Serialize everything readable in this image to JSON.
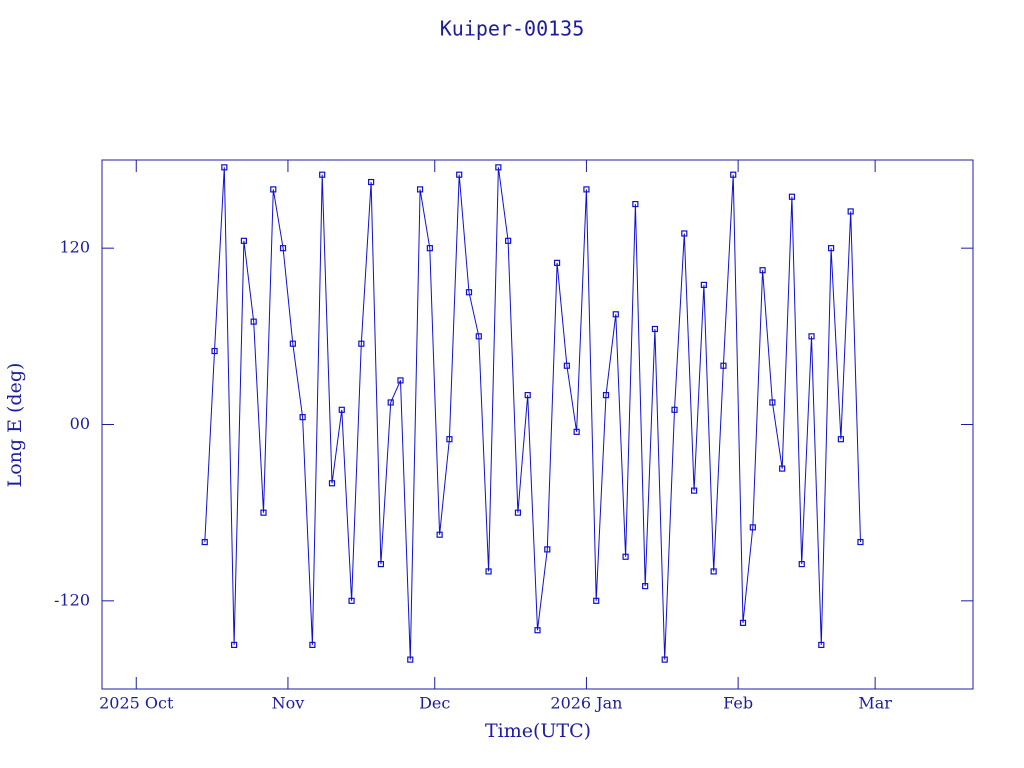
{
  "chart_data": {
    "type": "line",
    "title": "Kuiper-00135",
    "x_label": "Time(UTC)",
    "y_label": "Long E (deg)",
    "color": "#1010d0",
    "x": [
      14,
      16,
      18,
      20,
      22,
      24,
      26,
      28,
      30,
      32,
      34,
      36,
      38,
      40,
      42,
      44,
      46,
      48,
      50,
      52,
      54,
      56,
      58,
      60,
      62,
      64,
      66,
      68,
      70,
      72,
      74,
      76,
      78,
      80,
      82,
      84,
      86,
      88,
      90,
      92,
      94,
      96,
      98,
      100,
      102,
      104,
      106,
      108,
      110,
      112,
      114,
      116,
      118,
      120,
      122,
      124,
      126,
      128,
      130,
      132,
      134,
      136,
      138,
      140,
      142,
      144,
      146,
      148
    ],
    "values": [
      -80,
      50,
      175,
      -150,
      125,
      70,
      -60,
      160,
      120,
      55,
      5,
      -150,
      170,
      -40,
      10,
      -120,
      55,
      165,
      -95,
      15,
      30,
      -160,
      160,
      120,
      -75,
      -10,
      170,
      90,
      60,
      -100,
      175,
      125,
      -60,
      20,
      -140,
      -85,
      110,
      40,
      -5,
      160,
      -120,
      20,
      75,
      -90,
      150,
      -110,
      65,
      -160,
      10,
      130,
      -45,
      95,
      -100,
      40,
      170,
      -135,
      -70,
      105,
      15,
      -30,
      155,
      -95,
      60,
      -150,
      120,
      -10,
      145,
      -80
    ],
    "xlim": [
      -7,
      171
    ],
    "xticks": [
      {
        "value": 0,
        "label": "2025 Oct"
      },
      {
        "value": 31,
        "label": "Nov"
      },
      {
        "value": 61,
        "label": "Dec"
      },
      {
        "value": 92,
        "label": "2026 Jan"
      },
      {
        "value": 123,
        "label": "Feb"
      },
      {
        "value": 151,
        "label": "Mar"
      }
    ],
    "ylim": [
      -180,
      180
    ],
    "yticks": [
      -120,
      {
        "value": 0,
        "label": "00"
      },
      120
    ]
  }
}
